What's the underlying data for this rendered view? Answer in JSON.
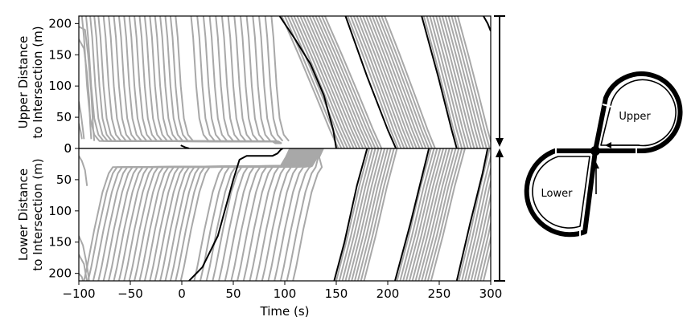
{
  "chart_data": {
    "type": "line",
    "xlabel": "Time (s)",
    "xlim": [
      -100,
      300
    ],
    "x_ticks": [
      -100,
      -50,
      0,
      50,
      100,
      150,
      200,
      250,
      300
    ],
    "series_color": "#a8a8a8",
    "highlight_color": "#000000",
    "panels": [
      {
        "id": "upper",
        "ylabel_lines": [
          "Upper Distance",
          "to Intersection (m)"
        ],
        "ylim": [
          0,
          212
        ],
        "y_inverted": false,
        "y_ticks": [
          0,
          50,
          100,
          150,
          200
        ],
        "highlighted": [
          {
            "name": "",
            "points": [
              [
                -1,
                5
              ],
              [
                3,
                2
              ],
              [
                7,
                0
              ]
            ]
          },
          {
            "name": "",
            "points": [
              [
                95,
                212
              ],
              [
                110,
                175
              ],
              [
                125,
                135
              ],
              [
                138,
                85
              ],
              [
                147,
                30
              ],
              [
                150,
                0
              ]
            ]
          },
          {
            "name": "",
            "points": [
              [
                159,
                212
              ],
              [
                180,
                115
              ],
              [
                200,
                30
              ],
              [
                208,
                0
              ]
            ]
          },
          {
            "name": "",
            "points": [
              [
                233,
                212
              ],
              [
                249,
                115
              ],
              [
                262,
                30
              ],
              [
                267,
                0
              ]
            ]
          },
          {
            "name": "",
            "points": [
              [
                293,
                212
              ],
              [
                297,
                200
              ],
              [
                300,
                188
              ]
            ]
          }
        ],
        "vehicle_curves": {
          "dwell_entry_x": [
            -97,
            -93,
            -89,
            -85,
            -81,
            -76,
            -71,
            -66,
            -61,
            -56,
            -51,
            -46,
            -41,
            -36,
            -31,
            -26,
            -21,
            -16,
            -11,
            -6,
            9,
            15,
            21,
            27,
            33,
            39,
            45,
            51,
            57,
            63,
            69,
            75,
            81,
            87
          ],
          "wave_bands": [
            {
              "start_x": [
                97,
                100,
                103,
                106,
                109,
                112,
                115,
                118,
                121,
                124,
                127,
                130,
                133,
                136,
                139
              ],
              "duration": 55
            },
            {
              "start_x": [
                161,
                164,
                167,
                170,
                173,
                176,
                179,
                182,
                185,
                188,
                191,
                194,
                197
              ],
              "duration": 49
            },
            {
              "start_x": [
                235,
                238,
                241,
                244,
                247,
                250,
                253,
                256,
                259,
                262,
                265,
                268
              ],
              "duration": 34
            }
          ]
        }
      },
      {
        "id": "lower",
        "ylabel_lines": [
          "Lower Distance",
          "to Intersection (m)"
        ],
        "ylim": [
          0,
          212
        ],
        "y_inverted": true,
        "y_ticks": [
          0,
          50,
          100,
          150,
          200
        ],
        "highlighted": [
          {
            "name": "",
            "points": [
              [
                7,
                212
              ],
              [
                20,
                190
              ],
              [
                35,
                140
              ],
              [
                50,
                50
              ],
              [
                56,
                18
              ],
              [
                63,
                12
              ],
              [
                88,
                12
              ],
              [
                93,
                8
              ],
              [
                96,
                2
              ],
              [
                98,
                0
              ]
            ]
          },
          {
            "name": "",
            "points": [
              [
                148,
                212
              ],
              [
                158,
                150
              ],
              [
                170,
                60
              ],
              [
                180,
                0
              ]
            ]
          },
          {
            "name": "",
            "points": [
              [
                207,
                212
              ],
              [
                222,
                120
              ],
              [
                234,
                40
              ],
              [
                240,
                0
              ]
            ]
          },
          {
            "name": "",
            "points": [
              [
                267,
                212
              ],
              [
                280,
                120
              ],
              [
                292,
                40
              ],
              [
                297,
                0
              ]
            ]
          }
        ],
        "vehicle_curves": {
          "approach_start_x": [
            -95,
            -91,
            -86,
            -81,
            -76,
            -71,
            -66,
            -61,
            -56,
            -51,
            -46,
            -41,
            -36,
            -31,
            -26,
            -21,
            -16,
            -11,
            -6,
            -1,
            12,
            18,
            24,
            30,
            36,
            42,
            48,
            54,
            60,
            66,
            72,
            78,
            84,
            90,
            96,
            102,
            108
          ],
          "wave_bands": [
            {
              "start_x": [
                150,
                153,
                156,
                159,
                162,
                165,
                168,
                171,
                174,
                177
              ],
              "duration": 32
            },
            {
              "start_x": [
                209,
                212,
                215,
                218,
                221,
                224,
                227,
                230,
                233,
                236,
                239,
                242
              ],
              "duration": 33
            },
            {
              "start_x": [
                269,
                272,
                275,
                278,
                281,
                284,
                287,
                290,
                293
              ],
              "duration": 30
            }
          ]
        }
      }
    ]
  },
  "track_diagram": {
    "upper_label": "Upper",
    "lower_label": "Lower"
  }
}
